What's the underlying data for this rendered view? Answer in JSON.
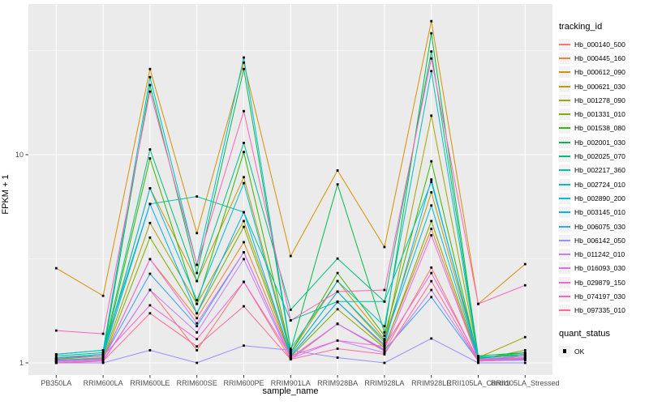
{
  "legend": {
    "tracking_title": "tracking_id",
    "quant_title": "quant_status",
    "quant_items": [
      {
        "label": "OK",
        "marker": "black-square"
      }
    ]
  },
  "chart_data": {
    "type": "line",
    "x_type": "categorical",
    "y_scale": "log10",
    "title": "",
    "xlabel": "sample_name",
    "ylabel": "FPKM + 1",
    "ylim": [
      0.87,
      53
    ],
    "y_tick_values": [
      1,
      10
    ],
    "y_major_gridlines": [
      1,
      10
    ],
    "y_minor_gridlines": [
      3.162,
      31.62
    ],
    "grid": true,
    "legend_position": "right",
    "panel_background": "#EBEBEB",
    "gridline_color": "#FFFFFF",
    "point_marker": "black-square",
    "categories": [
      "PB350LA",
      "RRIM600LA",
      "RRIM600LE",
      "RRIM600SE",
      "RRIM600PE",
      "RRIM901LA",
      "RRIM928BA",
      "RRIM928LA",
      "RRIM928LE",
      "RRII105LA_Control",
      "RRII105LA_Stressed"
    ],
    "series": [
      {
        "name": "Hb_000140_500",
        "color": "#F8766D",
        "values": [
          1.0,
          1.02,
          2.24,
          1.15,
          2.45,
          1.04,
          1.54,
          1.14,
          2.87,
          1.02,
          1.05
        ]
      },
      {
        "name": "Hb_000445_160",
        "color": "#EA8331",
        "values": [
          1.02,
          1.05,
          3.15,
          1.64,
          3.8,
          1.08,
          1.96,
          1.2,
          4.4,
          1.03,
          1.08
        ]
      },
      {
        "name": "Hb_000612_090",
        "color": "#D89000",
        "values": [
          2.85,
          2.1,
          25.8,
          4.2,
          27.7,
          3.26,
          8.4,
          3.6,
          43.8,
          1.92,
          2.98
        ]
      },
      {
        "name": "Hb_000621_030",
        "color": "#C09B00",
        "values": [
          1.05,
          1.08,
          6.9,
          2.47,
          7.8,
          1.12,
          2.47,
          1.3,
          6.6,
          1.05,
          1.1
        ]
      },
      {
        "name": "Hb_001278_090",
        "color": "#A3A500",
        "values": [
          1.03,
          1.06,
          4.7,
          1.92,
          4.8,
          1.1,
          2.2,
          1.25,
          15.4,
          1.06,
          1.33
        ]
      },
      {
        "name": "Hb_001331_010",
        "color": "#7CAE00",
        "values": [
          1.02,
          1.04,
          4.0,
          1.73,
          4.5,
          1.07,
          1.81,
          1.18,
          4.8,
          1.04,
          1.15
        ]
      },
      {
        "name": "Hb_001538_080",
        "color": "#39B600",
        "values": [
          1.04,
          1.08,
          9.6,
          1.92,
          10.3,
          1.12,
          2.7,
          1.35,
          9.3,
          1.05,
          1.12
        ]
      },
      {
        "name": "Hb_002001_030",
        "color": "#00BB4E",
        "values": [
          1.05,
          1.1,
          21.6,
          2.7,
          25.8,
          1.15,
          7.2,
          1.4,
          38.3,
          1.08,
          1.12
        ]
      },
      {
        "name": "Hb_002025_070",
        "color": "#00BF7D",
        "values": [
          1.08,
          1.12,
          10.6,
          2.47,
          11.4,
          1.8,
          3.17,
          1.97,
          31.3,
          1.06,
          1.1
        ]
      },
      {
        "name": "Hb_002217_360",
        "color": "#00C1A3",
        "values": [
          1.1,
          1.15,
          5.8,
          6.3,
          5.3,
          1.6,
          1.97,
          1.97,
          7.4,
          1.07,
          1.08
        ]
      },
      {
        "name": "Hb_002724_010",
        "color": "#00BFC4",
        "values": [
          1.1,
          1.15,
          23.6,
          2.96,
          29.3,
          1.17,
          2.47,
          1.5,
          25.2,
          1.05,
          1.1
        ]
      },
      {
        "name": "Hb_002890_200",
        "color": "#00BAE0",
        "values": [
          1.06,
          1.1,
          6.9,
          2.0,
          7.3,
          1.1,
          2.2,
          1.28,
          5.7,
          1.04,
          1.06
        ]
      },
      {
        "name": "Hb_003145_010",
        "color": "#00B0F6",
        "values": [
          1.05,
          1.08,
          5.8,
          1.73,
          5.3,
          1.08,
          1.96,
          1.22,
          7.6,
          1.03,
          1.05
        ]
      },
      {
        "name": "Hb_006075_030",
        "color": "#35A2FF",
        "values": [
          1.03,
          1.05,
          2.68,
          1.5,
          3.4,
          1.06,
          1.54,
          1.15,
          2.07,
          1.02,
          1.04
        ]
      },
      {
        "name": "Hb_006142_050",
        "color": "#9590FF",
        "values": [
          1.0,
          1.0,
          1.15,
          1.0,
          1.21,
          1.15,
          1.06,
          1.0,
          1.31,
          1.0,
          1.0
        ]
      },
      {
        "name": "Hb_011242_010",
        "color": "#C77CFF",
        "values": [
          1.01,
          1.03,
          2.24,
          1.4,
          3.15,
          1.05,
          1.28,
          1.12,
          2.24,
          1.02,
          1.03
        ]
      },
      {
        "name": "Hb_016093_030",
        "color": "#E76BF3",
        "values": [
          1.02,
          1.04,
          3.15,
          1.55,
          3.4,
          1.06,
          1.54,
          1.16,
          4.1,
          1.03,
          1.06
        ]
      },
      {
        "name": "Hb_029879_150",
        "color": "#FA62DB",
        "values": [
          1.05,
          1.08,
          1.89,
          1.3,
          2.45,
          1.08,
          1.28,
          1.2,
          2.7,
          1.04,
          1.08
        ]
      },
      {
        "name": "Hb_074197_030",
        "color": "#FF62BC",
        "values": [
          1.43,
          1.38,
          20.1,
          2.96,
          16.2,
          1.6,
          2.2,
          2.24,
          29.0,
          1.92,
          2.36
        ]
      },
      {
        "name": "Hb_097335_010",
        "color": "#FF6A98",
        "values": [
          1.0,
          1.02,
          1.73,
          1.2,
          1.87,
          1.04,
          1.17,
          1.1,
          2.47,
          1.02,
          1.05
        ]
      }
    ],
    "quant_status": {
      "label": "OK",
      "marker": "black-square"
    }
  }
}
